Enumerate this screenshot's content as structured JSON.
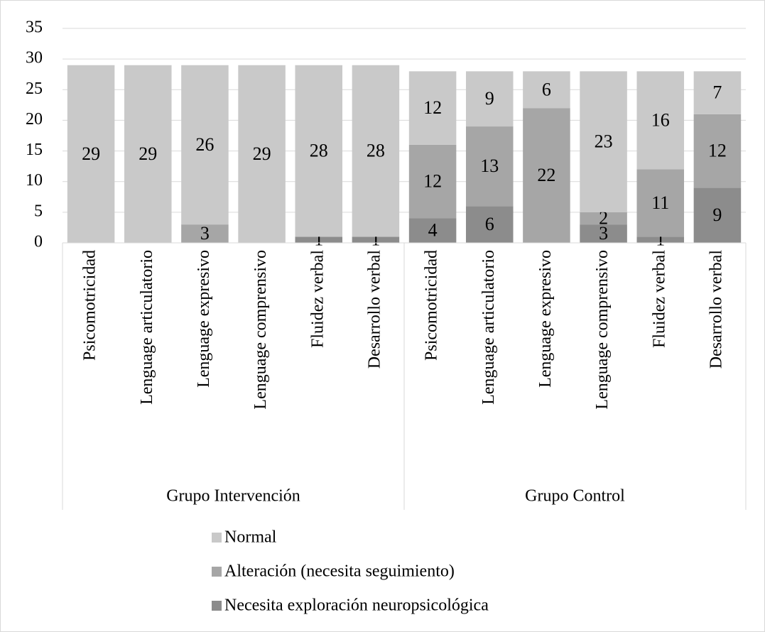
{
  "chart_data": {
    "type": "stacked_bar",
    "groups": [
      {
        "name": "Grupo Intervención",
        "categories": [
          "Psicomotricidad",
          "Lenguage articulatorio",
          "Lenguage expresivo",
          "Lenguage comprensivo",
          "Fluidez  verbal",
          "Desarrollo verbal"
        ]
      },
      {
        "name": "Grupo Control",
        "categories": [
          "Psicomotricidad",
          "Lenguage articulatorio",
          "Lenguage expresivo",
          "Lenguage comprensivo",
          "Fluidez  verbal",
          "Desarrollo verbal"
        ]
      }
    ],
    "series": [
      {
        "name": "Necesita exploración neuropsicológica",
        "color": "#8c8c8c",
        "values": [
          null,
          null,
          null,
          null,
          1,
          1,
          4,
          6,
          null,
          3,
          1,
          9
        ]
      },
      {
        "name": "Alteración (necesita seguimiento)",
        "color": "#a6a6a6",
        "values": [
          null,
          null,
          3,
          null,
          null,
          null,
          12,
          13,
          22,
          2,
          11,
          12
        ]
      },
      {
        "name": "Normal",
        "color": "#c9c9c9",
        "values": [
          29,
          29,
          26,
          29,
          28,
          28,
          12,
          9,
          6,
          23,
          16,
          7
        ]
      }
    ],
    "ylim": [
      0,
      35
    ],
    "yticks": [
      0,
      5,
      10,
      15,
      20,
      25,
      30,
      35
    ],
    "grid": true
  }
}
